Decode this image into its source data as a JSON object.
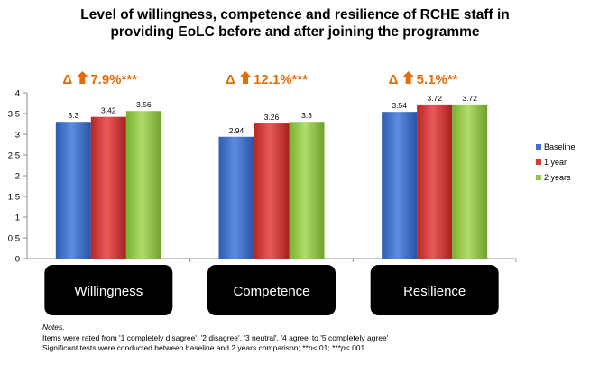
{
  "chart_data": {
    "type": "bar",
    "title_lines": [
      "Level of willingness, competence and resilience of RCHE staff in",
      "providing EoLC before and after joining the programme"
    ],
    "categories": [
      "Willingness",
      "Competence",
      "Resilience"
    ],
    "series": [
      {
        "name": "Baseline",
        "values": [
          3.3,
          2.94,
          3.54
        ],
        "color": "#3f6fc9"
      },
      {
        "name": "1 year",
        "values": [
          3.42,
          3.26,
          3.72
        ],
        "color": "#d63a3a"
      },
      {
        "name": "2 years",
        "values": [
          3.56,
          3.3,
          3.72
        ],
        "color": "#92c94a"
      }
    ],
    "data_labels": [
      [
        "3.3",
        "2.94",
        "3.54"
      ],
      [
        "3.42",
        "3.26",
        "3.72"
      ],
      [
        "3.56",
        "3.3",
        "3.72"
      ]
    ],
    "annotations": [
      {
        "delta": "Δ",
        "text": "7.9%***"
      },
      {
        "delta": "Δ",
        "text": "12.1%***"
      },
      {
        "delta": "Δ",
        "text": "5.1%**"
      }
    ],
    "ylim": [
      0,
      4
    ],
    "yticks": [
      "0",
      "0.5",
      "1",
      "1.5",
      "2",
      "2.5",
      "3",
      "3.5",
      "4"
    ],
    "grid": false,
    "legend": "right"
  },
  "notes": {
    "heading": "Notes.",
    "line1": "Items were rated from '1 completely disagree', '2 disagree', '3 neutral', '4 agree' to '5 completely agree'",
    "line2_prefix": "Significant tests were conducted between baseline and 2 years comparison; **",
    "p1_italic": "p",
    "p1_rest": "<.01; ***",
    "p2_italic": "p",
    "p2_rest": "<.001."
  }
}
